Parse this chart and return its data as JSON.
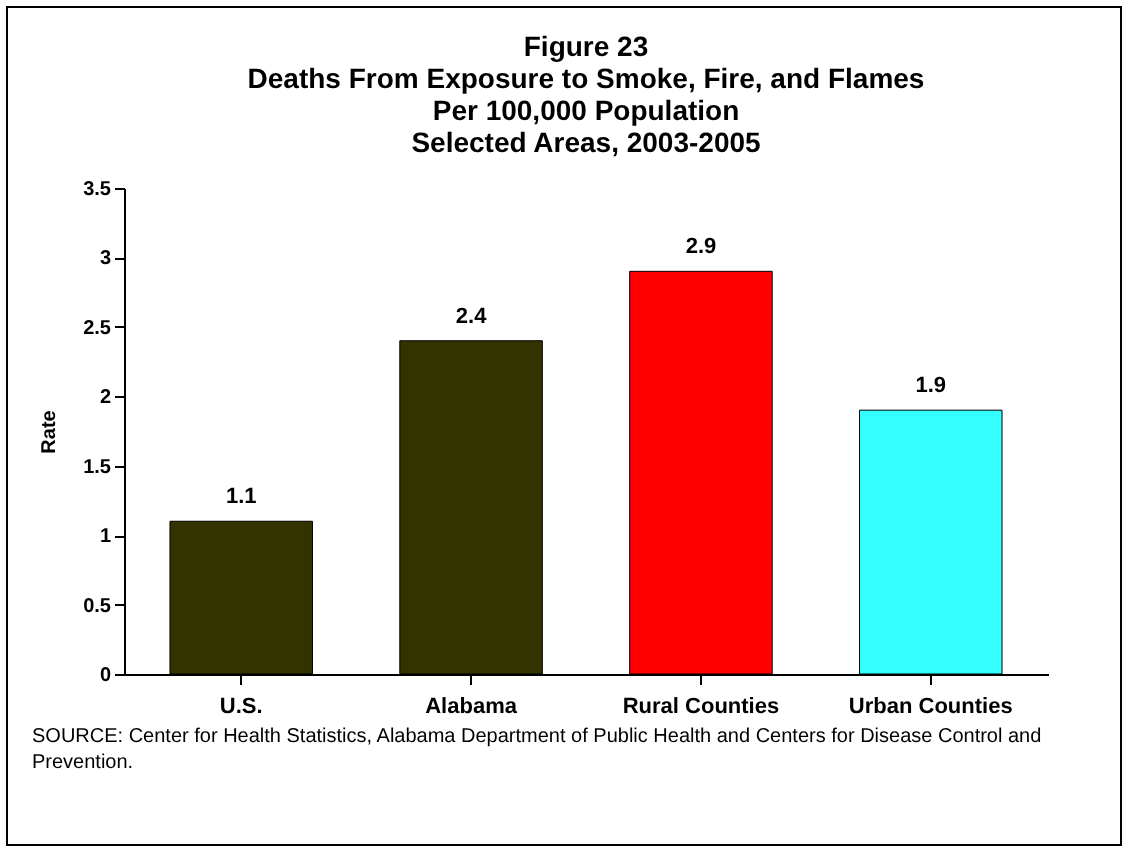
{
  "chart_data": {
    "type": "bar",
    "title": "Figure 23\nDeaths From Exposure to Smoke, Fire, and Flames\nPer 100,000 Population\nSelected Areas, 2003-2005",
    "ylabel": "Rate",
    "categories": [
      "U.S.",
      "Alabama",
      "Rural Counties",
      "Urban Counties"
    ],
    "values": [
      1.1,
      2.4,
      2.9,
      1.9
    ],
    "colors": [
      "#333300",
      "#333300",
      "#ff0000",
      "#33ffff"
    ],
    "ylim": [
      0,
      3.5
    ],
    "yticks": [
      0,
      0.5,
      1,
      1.5,
      2,
      2.5,
      3,
      3.5
    ],
    "data_labels": true,
    "annotations": [
      "SOURCE:  Center for Health Statistics, Alabama Department of Public Health and Centers for Disease Control and Prevention."
    ]
  }
}
